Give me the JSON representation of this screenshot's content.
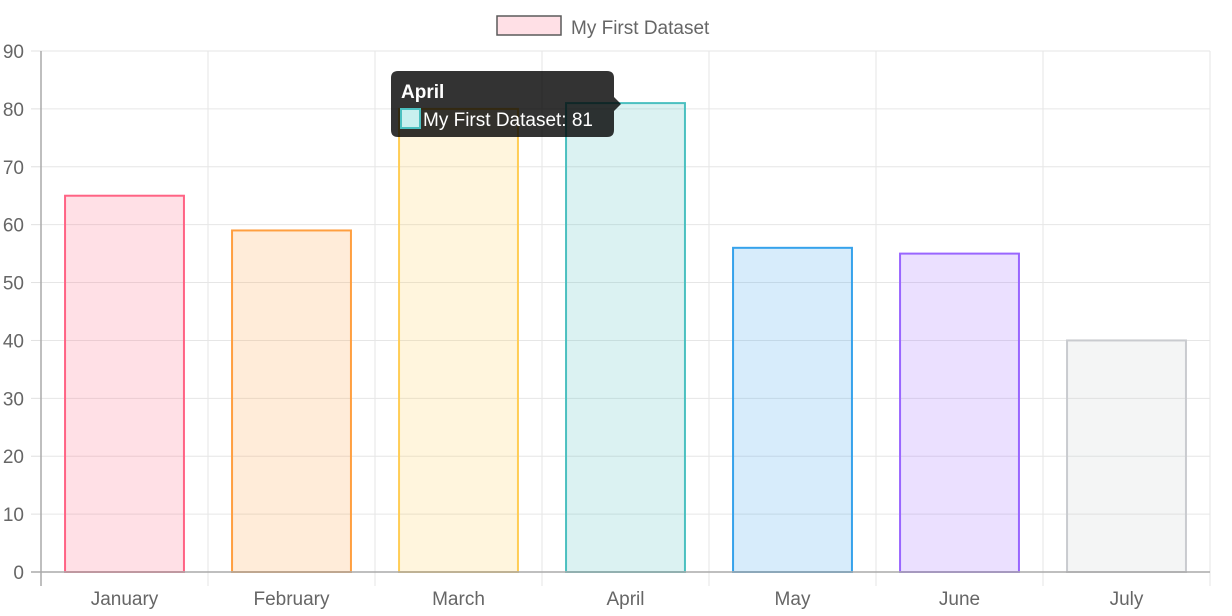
{
  "chart_data": {
    "type": "bar",
    "categories": [
      "January",
      "February",
      "March",
      "April",
      "May",
      "June",
      "July"
    ],
    "series": [
      {
        "name": "My First Dataset",
        "values": [
          65,
          59,
          80,
          81,
          56,
          55,
          40
        ]
      }
    ],
    "ylim": [
      0,
      90
    ],
    "y_ticks": [
      0,
      10,
      20,
      30,
      40,
      50,
      60,
      70,
      80,
      90
    ],
    "grid": true,
    "legend_position": "top",
    "bar_fills": [
      "rgba(255, 99, 132, 0.2)",
      "rgba(255, 159, 64, 0.2)",
      "rgba(255, 205, 86, 0.2)",
      "rgba(75, 192, 192, 0.2)",
      "rgba(54, 162, 235, 0.2)",
      "rgba(153, 102, 255, 0.2)",
      "rgba(201, 203, 207, 0.2)"
    ],
    "bar_strokes": [
      "#ff6384",
      "#ff9f40",
      "#ffcd56",
      "#4bc0c0",
      "#36a2eb",
      "#9966ff",
      "#c9cbcf"
    ],
    "legend_swatch_fill": "rgba(255, 99, 132, 0.2)",
    "legend_swatch_stroke": "#5a5a5a",
    "tooltip": {
      "title": "April",
      "label": "My First Dataset: 81",
      "category_index": 3,
      "background": "rgba(0, 0, 0, 0.8)",
      "swatch_fill": "#c8f0ef",
      "swatch_stroke": "#4bc0c0"
    }
  }
}
